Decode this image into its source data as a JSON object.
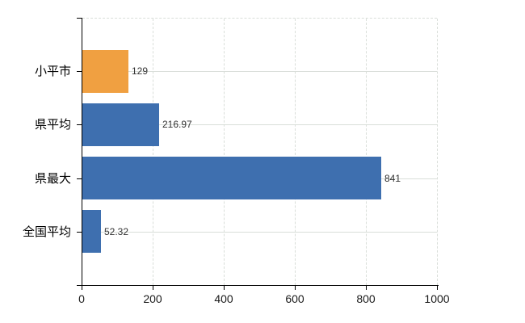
{
  "chart_data": {
    "type": "bar",
    "orientation": "horizontal",
    "title": "",
    "xlabel": "",
    "ylabel": "",
    "categories": [
      "小平市",
      "県平均",
      "県最大",
      "全国平均"
    ],
    "values": [
      129,
      216.97,
      841,
      52.32
    ],
    "value_labels": [
      "129",
      "216.97",
      "841",
      "52.32"
    ],
    "bar_colors": [
      "#F0A041",
      "#3E6FAF",
      "#3E6FAF",
      "#3E6FAF"
    ],
    "xlim": [
      0,
      1000
    ],
    "x_ticks": [
      0,
      200,
      400,
      600,
      800,
      1000
    ],
    "x_tick_labels": [
      "0",
      "200",
      "400",
      "600",
      "800",
      "1000"
    ],
    "grid": "on",
    "legend": "none",
    "colors": {
      "highlight_bar": "#F0A041",
      "default_bar": "#3E6FAF",
      "gridline": "#D9DED9",
      "axis": "#000000",
      "value_label_text": "#333333",
      "tick_label_text": "#1A1A1A",
      "background": "#FFFFFF"
    }
  }
}
